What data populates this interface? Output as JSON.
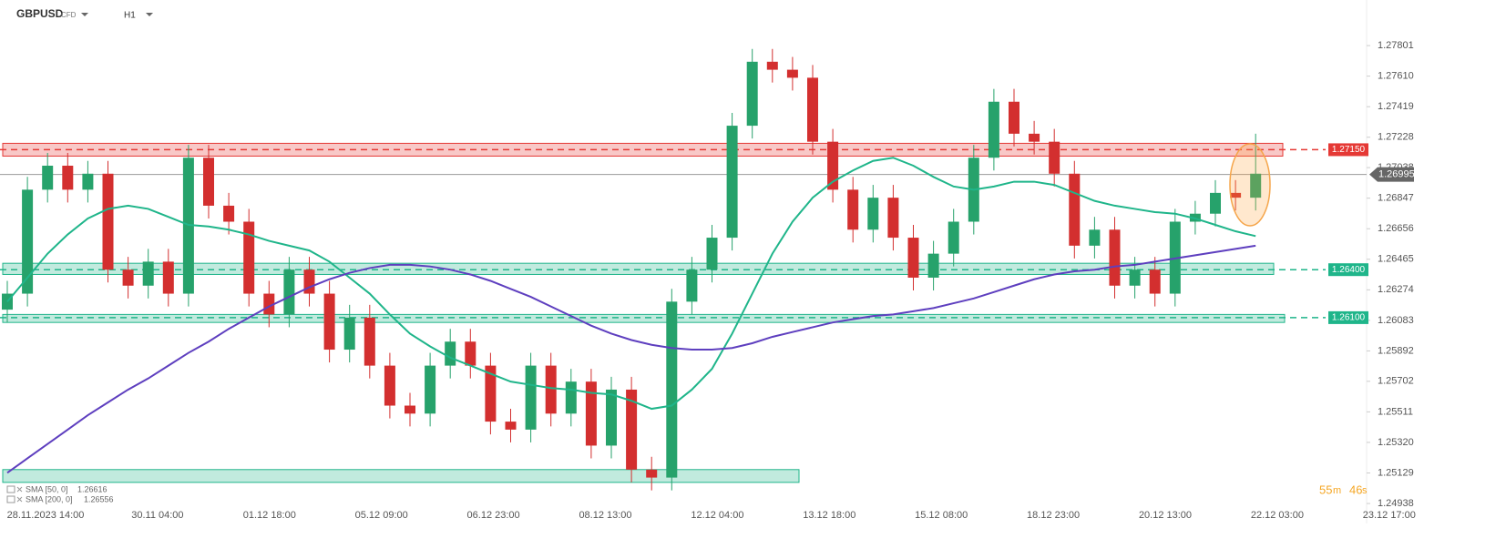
{
  "chart_data": {
    "type": "candlestick",
    "symbol": "GBPUSD",
    "instrument": "CFD",
    "timeframe": "H1",
    "x_labels": [
      "28.11.2023 14:00",
      "30.11 04:00",
      "01.12 18:00",
      "05.12 09:00",
      "06.12 23:00",
      "08.12 13:00",
      "12.12 04:00",
      "13.12 18:00",
      "15.12 08:00",
      "18.12 23:00",
      "20.12 13:00",
      "22.12 03:00",
      "23.12 17:00"
    ],
    "open": [
      1.2615,
      1.2625,
      1.269,
      1.2705,
      1.269,
      1.27,
      1.264,
      1.263,
      1.2645,
      1.2625,
      1.271,
      1.268,
      1.267,
      1.2625,
      1.2612,
      1.264,
      1.2625,
      1.259,
      1.261,
      1.258,
      1.2555,
      1.255,
      1.258,
      1.2595,
      1.258,
      1.2545,
      1.254,
      1.258,
      1.255,
      1.257,
      1.253,
      1.2565,
      1.2515,
      1.251,
      1.262,
      1.264,
      1.266,
      1.273,
      1.277,
      1.2765,
      1.276,
      1.272,
      1.269,
      1.2665,
      1.2685,
      1.266,
      1.2635,
      1.265,
      1.267,
      1.271,
      1.2745,
      1.2725,
      1.272,
      1.27,
      1.2655,
      1.2665,
      1.263,
      1.264,
      1.2625,
      1.267,
      1.2675,
      1.2688,
      1.2685
    ],
    "high": [
      1.2633,
      1.2698,
      1.2713,
      1.2713,
      1.2708,
      1.2708,
      1.2648,
      1.2653,
      1.2653,
      1.2718,
      1.2718,
      1.2688,
      1.2678,
      1.2633,
      1.2648,
      1.2648,
      1.2633,
      1.2618,
      1.2618,
      1.2588,
      1.2563,
      1.2588,
      1.2603,
      1.2603,
      1.2588,
      1.2553,
      1.2588,
      1.2588,
      1.2578,
      1.2578,
      1.2573,
      1.2573,
      1.2523,
      1.2628,
      1.2648,
      1.2668,
      1.2738,
      1.2778,
      1.2778,
      1.2773,
      1.2768,
      1.2728,
      1.2698,
      1.2693,
      1.2693,
      1.2668,
      1.2658,
      1.2678,
      1.2718,
      1.2753,
      1.2753,
      1.2733,
      1.2728,
      1.2708,
      1.2673,
      1.2673,
      1.2648,
      1.2648,
      1.2678,
      1.2683,
      1.2696,
      1.2696,
      1.2725
    ],
    "low": [
      1.2607,
      1.2617,
      1.2682,
      1.2682,
      1.2682,
      1.2632,
      1.2622,
      1.2622,
      1.2617,
      1.2617,
      1.2672,
      1.2662,
      1.2617,
      1.2604,
      1.2604,
      1.2617,
      1.2582,
      1.2582,
      1.2572,
      1.2547,
      1.2542,
      1.2542,
      1.2572,
      1.2572,
      1.2537,
      1.2532,
      1.2532,
      1.2542,
      1.2542,
      1.2522,
      1.2522,
      1.2507,
      1.2502,
      1.2502,
      1.2612,
      1.2632,
      1.2652,
      1.2722,
      1.2757,
      1.2752,
      1.2712,
      1.2682,
      1.2657,
      1.2657,
      1.2652,
      1.2627,
      1.2627,
      1.2642,
      1.2662,
      1.2702,
      1.2717,
      1.2712,
      1.2692,
      1.2647,
      1.2647,
      1.2622,
      1.2622,
      1.2617,
      1.2617,
      1.2662,
      1.2667,
      1.2677,
      1.2677
    ],
    "close": [
      1.2625,
      1.269,
      1.2705,
      1.269,
      1.27,
      1.264,
      1.263,
      1.2645,
      1.2625,
      1.271,
      1.268,
      1.267,
      1.2625,
      1.2612,
      1.264,
      1.2625,
      1.259,
      1.261,
      1.258,
      1.2555,
      1.255,
      1.258,
      1.2595,
      1.258,
      1.2545,
      1.254,
      1.258,
      1.255,
      1.257,
      1.253,
      1.2565,
      1.2515,
      1.251,
      1.262,
      1.264,
      1.266,
      1.273,
      1.277,
      1.2765,
      1.276,
      1.272,
      1.269,
      1.2665,
      1.2685,
      1.266,
      1.2635,
      1.265,
      1.267,
      1.271,
      1.2745,
      1.2725,
      1.272,
      1.27,
      1.2655,
      1.2665,
      1.263,
      1.264,
      1.2625,
      1.267,
      1.2675,
      1.2688,
      1.2685,
      1.27
    ],
    "up_color": "#26a26b",
    "down_color": "#d32f2f",
    "series": [
      {
        "name": "SMA [50, 0]",
        "legend_value": 1.26616,
        "color": "#1fb58a",
        "values": [
          1.262,
          1.2635,
          1.265,
          1.2662,
          1.2672,
          1.2678,
          1.268,
          1.2678,
          1.2673,
          1.2668,
          1.2667,
          1.2665,
          1.2662,
          1.2658,
          1.2655,
          1.2652,
          1.2645,
          1.2635,
          1.2625,
          1.2612,
          1.26,
          1.2592,
          1.2585,
          1.258,
          1.2575,
          1.257,
          1.2568,
          1.2566,
          1.2565,
          1.2563,
          1.2562,
          1.2558,
          1.2553,
          1.2555,
          1.2565,
          1.2578,
          1.26,
          1.2625,
          1.265,
          1.267,
          1.2685,
          1.2695,
          1.2702,
          1.2708,
          1.271,
          1.2705,
          1.2698,
          1.2692,
          1.269,
          1.2692,
          1.2695,
          1.2695,
          1.2693,
          1.2688,
          1.2683,
          1.268,
          1.2678,
          1.2676,
          1.2675,
          1.2672,
          1.2668,
          1.2664,
          1.2661
        ]
      },
      {
        "name": "SMA [200, 0]",
        "legend_value": 1.26556,
        "color": "#5e3fbf",
        "values": [
          1.2513,
          1.2522,
          1.2531,
          1.254,
          1.2549,
          1.2557,
          1.2565,
          1.2572,
          1.258,
          1.2588,
          1.2595,
          1.2603,
          1.261,
          1.2617,
          1.2623,
          1.2629,
          1.2634,
          1.2638,
          1.2641,
          1.2643,
          1.2643,
          1.2642,
          1.264,
          1.2637,
          1.2633,
          1.2628,
          1.2623,
          1.2617,
          1.2611,
          1.2605,
          1.26,
          1.2596,
          1.2593,
          1.2591,
          1.259,
          1.259,
          1.2591,
          1.2594,
          1.2598,
          1.2601,
          1.2604,
          1.2607,
          1.2609,
          1.2611,
          1.2612,
          1.2614,
          1.2616,
          1.2619,
          1.2622,
          1.2626,
          1.263,
          1.2634,
          1.2637,
          1.2639,
          1.264,
          1.2642,
          1.2643,
          1.2645,
          1.2647,
          1.2649,
          1.2651,
          1.2653,
          1.2655
        ]
      }
    ],
    "levels": [
      {
        "value": 1.2715,
        "label": "1.27150",
        "color": "#e53935"
      },
      {
        "value": 1.264,
        "label": "1.26400",
        "color": "#1fb58a"
      },
      {
        "value": 1.261,
        "label": "1.26100",
        "color": "#1fb58a"
      }
    ],
    "zones": [
      {
        "low": 1.2711,
        "high": 1.2719,
        "color": "#e53935"
      },
      {
        "low": 1.2637,
        "high": 1.2644,
        "color": "#1fb58a"
      },
      {
        "low": 1.2607,
        "high": 1.2612,
        "color": "#1fb58a"
      },
      {
        "low": 1.2507,
        "high": 1.2515,
        "color": "#1fb58a"
      }
    ],
    "last_price": 1.26995,
    "timer": [
      "55",
      "m",
      "46",
      "s"
    ],
    "ylim": [
      1.24813,
      1.28086
    ],
    "yticks": [
      1.27801,
      {
        "value": 1.2761,
        "label": "1.27610"
      },
      1.27419,
      1.27228,
      1.27038,
      1.26847,
      1.26656,
      1.26465,
      1.26274,
      1.26083,
      1.25892,
      1.25702,
      1.25511,
      {
        "value": 1.2532,
        "label": "1.25320"
      },
      1.25129,
      1.24938
    ]
  }
}
